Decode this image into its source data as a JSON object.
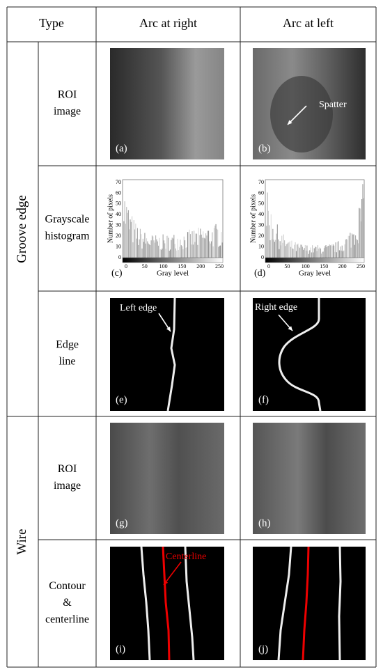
{
  "header": {
    "type": "Type",
    "arc_right": "Arc at right",
    "arc_left": "Arc at left"
  },
  "groups": [
    {
      "label": "Groove edge"
    },
    {
      "label": "Wire"
    }
  ],
  "rows": [
    {
      "label": [
        "ROI",
        "image"
      ],
      "panels": [
        {
          "tag": "(a)"
        },
        {
          "tag": "(b)",
          "annotation": "Spatter"
        }
      ]
    },
    {
      "label": [
        "Grayscale",
        "histogram"
      ],
      "panels": [
        {
          "tag": "(c)"
        },
        {
          "tag": "(d)"
        }
      ]
    },
    {
      "label": [
        "Edge",
        "line"
      ],
      "panels": [
        {
          "tag": "(e)",
          "annotation": "Left edge"
        },
        {
          "tag": "(f)",
          "annotation": "Right edge"
        }
      ]
    },
    {
      "label": [
        "ROI",
        "image"
      ],
      "panels": [
        {
          "tag": "(g)"
        },
        {
          "tag": "(h)"
        }
      ]
    },
    {
      "label": [
        "Contour",
        "&",
        "centerline"
      ],
      "panels": [
        {
          "tag": "(i)",
          "annotation": "Centerline"
        },
        {
          "tag": "(j)"
        }
      ]
    }
  ],
  "histogram": {
    "ylabel": "Number of pixels",
    "xlabel": "Gray level",
    "xticks": [
      0,
      50,
      100,
      150,
      200,
      250
    ],
    "yticks": [
      0,
      10,
      20,
      30,
      40,
      50,
      60,
      70
    ]
  }
}
